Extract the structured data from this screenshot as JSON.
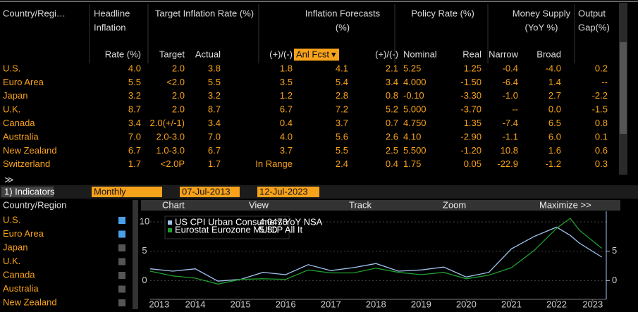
{
  "table": {
    "group_headers": [
      [
        "Country/Regi…"
      ],
      [
        "Headline",
        "Inflation"
      ],
      [
        "Target Inflation Rate (%)"
      ],
      [
        "Inflation Forecasts",
        "(%)"
      ],
      [
        "Policy Rate (%)"
      ],
      [
        "Money Supply",
        "(YoY %)"
      ],
      [
        "Output",
        "Gap(%)"
      ]
    ],
    "subheaders": [
      "Rate (%)",
      "Target",
      "Actual",
      "(+)/(-)",
      "Anl Fcst",
      "(+)/(-)",
      "Nominal",
      "Real",
      "Narrow",
      "Broad"
    ],
    "rows": [
      [
        "U.S.",
        "4.0",
        "2.0",
        "3.8",
        "1.8",
        "4.1",
        "2.1",
        "5.25",
        "1.25",
        "-0.4",
        "-4.0",
        "0.2"
      ],
      [
        "Euro Area",
        "5.5",
        "<2.0",
        "5.5",
        "3.5",
        "5.4",
        "3.4",
        "4.000",
        "-1.50",
        "-6.4",
        "1.4",
        "--"
      ],
      [
        "Japan",
        "3.2",
        "2.0",
        "3.2",
        "1.2",
        "2.8",
        "0.8",
        "-0.10",
        "-3.30",
        "-1.0",
        "2.7",
        "-2.2"
      ],
      [
        "U.K.",
        "8.7",
        "2.0",
        "8.7",
        "6.7",
        "7.2",
        "5.2",
        "5.000",
        "-3.70",
        "--",
        "0.0",
        "-1.5"
      ],
      [
        "Canada",
        "3.4",
        "2.0(+/-1)",
        "3.4",
        "0.4",
        "3.7",
        "0.7",
        "4.750",
        "1.35",
        "-7.4",
        "6.5",
        "0.8"
      ],
      [
        "Australia",
        "7.0",
        "2.0-3.0",
        "7.0",
        "4.0",
        "5.6",
        "2.6",
        "4.10",
        "-2.90",
        "-1.1",
        "6.0",
        "0.1"
      ],
      [
        "New Zealand",
        "6.7",
        "1.0-3.0",
        "6.7",
        "3.7",
        "5.5",
        "2.5",
        "5.500",
        "-1.20",
        "10.8",
        "1.6",
        "0.6"
      ],
      [
        "Switzerland",
        "1.7",
        "<2.0P",
        "1.7",
        "In Range",
        "2.4",
        "0.4",
        "1.75",
        "0.05",
        "-22.9",
        "-1.2",
        "0.3"
      ]
    ]
  },
  "toolbar": {
    "indicators": "1) Indicators",
    "frequency": "Monthly",
    "start": "07-Jul-2013",
    "end": "12-Jul-2023"
  },
  "panel": {
    "header": "Country/Region",
    "items": [
      "U.S.",
      "Euro Area",
      "Japan",
      "U.K.",
      "Canada",
      "Australia",
      "New Zealand"
    ],
    "checked": [
      true,
      true,
      false,
      false,
      false,
      false,
      false
    ]
  },
  "chart_toolbar": [
    "Chart",
    "View",
    "Track",
    "Zoom",
    "Maximize >>"
  ],
  "chart_data": {
    "type": "line",
    "grid": true,
    "x": [
      2013.5,
      2014,
      2014.5,
      2015,
      2015.5,
      2016,
      2016.5,
      2017,
      2017.5,
      2018,
      2018.5,
      2019,
      2019.5,
      2020,
      2020.5,
      2021,
      2021.5,
      2022,
      2022.5,
      2022.8,
      2023,
      2023.5
    ],
    "series": [
      {
        "name": "US CPI Urban Consumers YoY NSA",
        "legend_value": "4.0476",
        "color": "#9fc3ee",
        "values": [
          2.0,
          1.6,
          2.0,
          -0.1,
          0.2,
          1.4,
          1.0,
          2.7,
          1.7,
          2.2,
          2.9,
          1.6,
          1.8,
          2.3,
          0.6,
          1.4,
          5.4,
          7.5,
          9.1,
          7.7,
          6.4,
          4.0
        ]
      },
      {
        "name": "Eurostat Eurozone MUICP All It",
        "legend_value": "5.50",
        "color": "#1f9e2e",
        "values": [
          1.6,
          0.8,
          0.4,
          -0.6,
          0.2,
          0.3,
          0.2,
          1.8,
          1.3,
          1.3,
          2.1,
          1.4,
          1.0,
          1.4,
          0.3,
          0.9,
          2.2,
          5.1,
          8.9,
          10.6,
          8.6,
          5.5
        ]
      }
    ],
    "xlim": [
      2013.5,
      2023.6
    ],
    "xticks": [
      {
        "value": 2013.7,
        "label": "2013"
      },
      {
        "value": 2014.5,
        "label": "2014"
      },
      {
        "value": 2015.5,
        "label": "2015"
      },
      {
        "value": 2016.5,
        "label": "2016"
      },
      {
        "value": 2017.5,
        "label": "2017"
      },
      {
        "value": 2018.5,
        "label": "2018"
      },
      {
        "value": 2019.5,
        "label": "2019"
      },
      {
        "value": 2020.5,
        "label": "2020"
      },
      {
        "value": 2021.5,
        "label": "2021"
      },
      {
        "value": 2022.5,
        "label": "2022"
      },
      {
        "value": 2023.3,
        "label": "2023"
      }
    ],
    "ylim": [
      -3.2,
      11.8
    ],
    "yticks": [
      0,
      5,
      10
    ],
    "y2lim": [
      -3.2,
      11.8
    ],
    "y2ticks": [
      0,
      5
    ]
  }
}
